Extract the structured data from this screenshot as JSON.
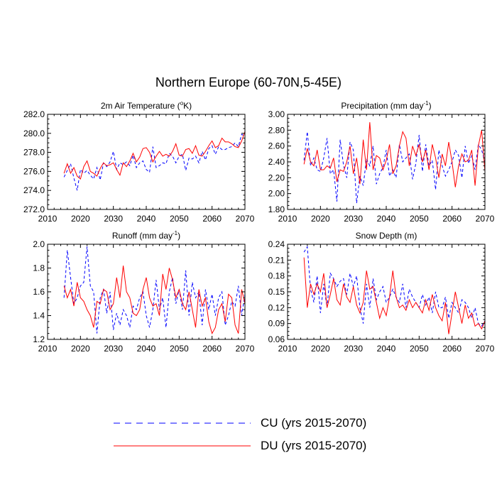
{
  "title": "Northern Europe (60-70N,5-45E)",
  "colors": {
    "CU": "#0000ff",
    "DU": "#ff0000",
    "frame": "#000000"
  },
  "legend": [
    {
      "key": "CU",
      "label": "CU (yrs 2015-2070)",
      "style": "dashed"
    },
    {
      "key": "DU",
      "label": "DU (yrs 2015-2070)",
      "style": "solid"
    }
  ],
  "chart_data": [
    {
      "type": "line",
      "title": "2m Air Temperature (",
      "title_sup": "o",
      "title_after": "K)",
      "xlim": [
        2010,
        2070
      ],
      "xticks": [
        "2010",
        "2020",
        "2030",
        "2040",
        "2050",
        "2060",
        "2070"
      ],
      "ylim": [
        272.0,
        282.0
      ],
      "yticks": [
        "272.0",
        "274.0",
        "276.0",
        "278.0",
        "280.0",
        "282.0"
      ],
      "x_start": 2015,
      "series": [
        {
          "name": "CU",
          "values": [
            275.4,
            276.1,
            276.8,
            275.3,
            274.0,
            276.2,
            275.8,
            276.1,
            275.6,
            275.2,
            276.4,
            275.1,
            276.9,
            276.5,
            277.0,
            278.1,
            276.2,
            276.9,
            276.7,
            277.0,
            276.6,
            277.7,
            276.4,
            276.9,
            277.1,
            276.2,
            275.9,
            278.6,
            276.4,
            276.6,
            276.9,
            276.8,
            277.9,
            277.6,
            276.9,
            277.6,
            277.8,
            276.1,
            277.4,
            277.3,
            277.6,
            276.9,
            278.1,
            277.2,
            278.4,
            278.7,
            277.8,
            278.6,
            278.3,
            278.3,
            278.5,
            278.6,
            279.0,
            278.6,
            279.9,
            279.7
          ]
        },
        {
          "name": "DU",
          "values": [
            275.8,
            276.8,
            275.8,
            276.4,
            275.5,
            275.2,
            276.5,
            277.1,
            276.0,
            275.8,
            275.5,
            276.3,
            276.9,
            276.6,
            276.7,
            276.9,
            276.2,
            275.6,
            276.9,
            276.5,
            277.1,
            277.9,
            277.0,
            277.5,
            278.4,
            278.5,
            278.0,
            277.0,
            277.6,
            278.1,
            277.6,
            277.8,
            277.6,
            278.1,
            278.9,
            277.7,
            277.6,
            278.3,
            278.4,
            277.9,
            278.7,
            277.7,
            277.6,
            278.1,
            278.7,
            279.2,
            278.5,
            278.7,
            279.5,
            279.1,
            279.1,
            278.9,
            278.6,
            278.5,
            279.2,
            280.2
          ]
        }
      ]
    },
    {
      "type": "line",
      "title": "Precipitation (mm day",
      "title_sup": "-1",
      "title_after": ")",
      "xlim": [
        2010,
        2070
      ],
      "xticks": [
        "2010",
        "2020",
        "2030",
        "2040",
        "2050",
        "2060",
        "2070"
      ],
      "ylim": [
        1.8,
        3.0
      ],
      "yticks": [
        "1.80",
        "2.00",
        "2.20",
        "2.40",
        "2.60",
        "2.80",
        "3.00"
      ],
      "x_start": 2015,
      "series": [
        {
          "name": "CU",
          "values": [
            2.42,
            2.78,
            2.35,
            2.45,
            2.3,
            2.28,
            2.45,
            2.7,
            2.25,
            2.3,
            1.9,
            2.68,
            2.36,
            2.2,
            2.65,
            2.55,
            1.88,
            2.22,
            2.1,
            2.44,
            2.35,
            2.6,
            2.12,
            2.25,
            2.33,
            2.55,
            2.22,
            2.3,
            2.2,
            2.62,
            2.4,
            2.45,
            2.5,
            2.18,
            2.38,
            2.74,
            2.28,
            2.62,
            2.35,
            2.42,
            2.05,
            2.55,
            2.35,
            2.22,
            2.3,
            2.4,
            2.55,
            2.48,
            2.2,
            2.6,
            2.38,
            2.48,
            2.3,
            2.62,
            2.55,
            2.4
          ]
        },
        {
          "name": "DU",
          "values": [
            2.37,
            2.57,
            2.4,
            2.35,
            2.55,
            2.3,
            2.3,
            2.35,
            2.32,
            2.45,
            2.15,
            2.3,
            2.28,
            2.4,
            2.6,
            2.25,
            2.45,
            2.12,
            2.68,
            2.3,
            2.9,
            2.3,
            2.48,
            2.45,
            2.3,
            2.42,
            2.62,
            2.25,
            2.35,
            2.6,
            2.78,
            2.7,
            2.35,
            2.6,
            2.48,
            2.62,
            2.4,
            2.55,
            2.3,
            2.62,
            2.45,
            2.2,
            2.5,
            2.35,
            2.65,
            2.4,
            2.08,
            2.35,
            2.5,
            2.4,
            2.42,
            2.55,
            2.1,
            2.6,
            2.8,
            2.28
          ]
        }
      ]
    },
    {
      "type": "line",
      "title": "Runoff (mm day",
      "title_sup": "-1",
      "title_after": ")",
      "xlim": [
        2010,
        2070
      ],
      "xticks": [
        "2010",
        "2020",
        "2030",
        "2040",
        "2050",
        "2060",
        "2070"
      ],
      "ylim": [
        1.2,
        2.0
      ],
      "yticks": [
        "1.2",
        "1.4",
        "1.6",
        "1.8",
        "2.0"
      ],
      "x_start": 2015,
      "series": [
        {
          "name": "CU",
          "values": [
            1.55,
            1.95,
            1.72,
            1.5,
            1.55,
            1.65,
            1.68,
            1.98,
            1.65,
            1.6,
            1.25,
            1.55,
            1.62,
            1.42,
            1.6,
            1.28,
            1.42,
            1.32,
            1.45,
            1.4,
            1.3,
            1.48,
            1.45,
            1.55,
            1.6,
            1.4,
            1.3,
            1.45,
            1.7,
            1.45,
            1.55,
            1.3,
            1.6,
            1.72,
            1.5,
            1.62,
            1.45,
            1.78,
            1.4,
            1.68,
            1.55,
            1.6,
            1.32,
            1.62,
            1.45,
            1.58,
            1.4,
            1.55,
            1.6,
            1.32,
            1.4,
            1.52,
            1.48,
            1.65,
            1.4,
            1.58
          ]
        },
        {
          "name": "DU",
          "values": [
            1.65,
            1.55,
            1.62,
            1.48,
            1.68,
            1.55,
            1.52,
            1.45,
            1.4,
            1.3,
            1.52,
            1.5,
            1.62,
            1.6,
            1.45,
            1.5,
            1.72,
            1.55,
            1.82,
            1.6,
            1.55,
            1.42,
            1.4,
            1.45,
            1.62,
            1.72,
            1.55,
            1.48,
            1.5,
            1.4,
            1.75,
            1.62,
            1.8,
            1.7,
            1.55,
            1.62,
            1.5,
            1.45,
            1.6,
            1.45,
            1.3,
            1.62,
            1.48,
            1.55,
            1.35,
            1.25,
            1.3,
            1.45,
            1.5,
            1.35,
            1.58,
            1.55,
            1.32,
            1.25,
            1.62,
            1.5
          ]
        }
      ]
    },
    {
      "type": "line",
      "title": "Snow Depth (m)",
      "title_sup": "",
      "title_after": "",
      "xlim": [
        2010,
        2070
      ],
      "xticks": [
        "2010",
        "2020",
        "2030",
        "2040",
        "2050",
        "2060",
        "2070"
      ],
      "ylim": [
        0.06,
        0.24
      ],
      "yticks": [
        "0.06",
        "0.09",
        "0.12",
        "0.15",
        "0.18",
        "0.21",
        "0.24"
      ],
      "x_start": 2015,
      "series": [
        {
          "name": "CU",
          "values": [
            0.225,
            0.235,
            0.155,
            0.13,
            0.18,
            0.11,
            0.165,
            0.12,
            0.185,
            0.175,
            0.16,
            0.17,
            0.175,
            0.145,
            0.185,
            0.16,
            0.18,
            0.12,
            0.09,
            0.165,
            0.12,
            0.175,
            0.135,
            0.15,
            0.16,
            0.13,
            0.14,
            0.155,
            0.14,
            0.13,
            0.165,
            0.12,
            0.155,
            0.14,
            0.13,
            0.12,
            0.145,
            0.125,
            0.14,
            0.11,
            0.15,
            0.12,
            0.12,
            0.14,
            0.1,
            0.13,
            0.12,
            0.11,
            0.135,
            0.13,
            0.12,
            0.1,
            0.12,
            0.09,
            0.085,
            0.095
          ]
        },
        {
          "name": "DU",
          "values": [
            0.215,
            0.12,
            0.165,
            0.145,
            0.165,
            0.15,
            0.185,
            0.12,
            0.145,
            0.175,
            0.135,
            0.125,
            0.165,
            0.14,
            0.13,
            0.16,
            0.125,
            0.11,
            0.13,
            0.19,
            0.155,
            0.16,
            0.13,
            0.1,
            0.12,
            0.105,
            0.14,
            0.19,
            0.14,
            0.12,
            0.125,
            0.115,
            0.135,
            0.12,
            0.13,
            0.12,
            0.11,
            0.135,
            0.115,
            0.145,
            0.12,
            0.105,
            0.095,
            0.13,
            0.07,
            0.11,
            0.15,
            0.12,
            0.09,
            0.125,
            0.1,
            0.11,
            0.085,
            0.09,
            0.08,
            0.095
          ]
        }
      ]
    }
  ]
}
